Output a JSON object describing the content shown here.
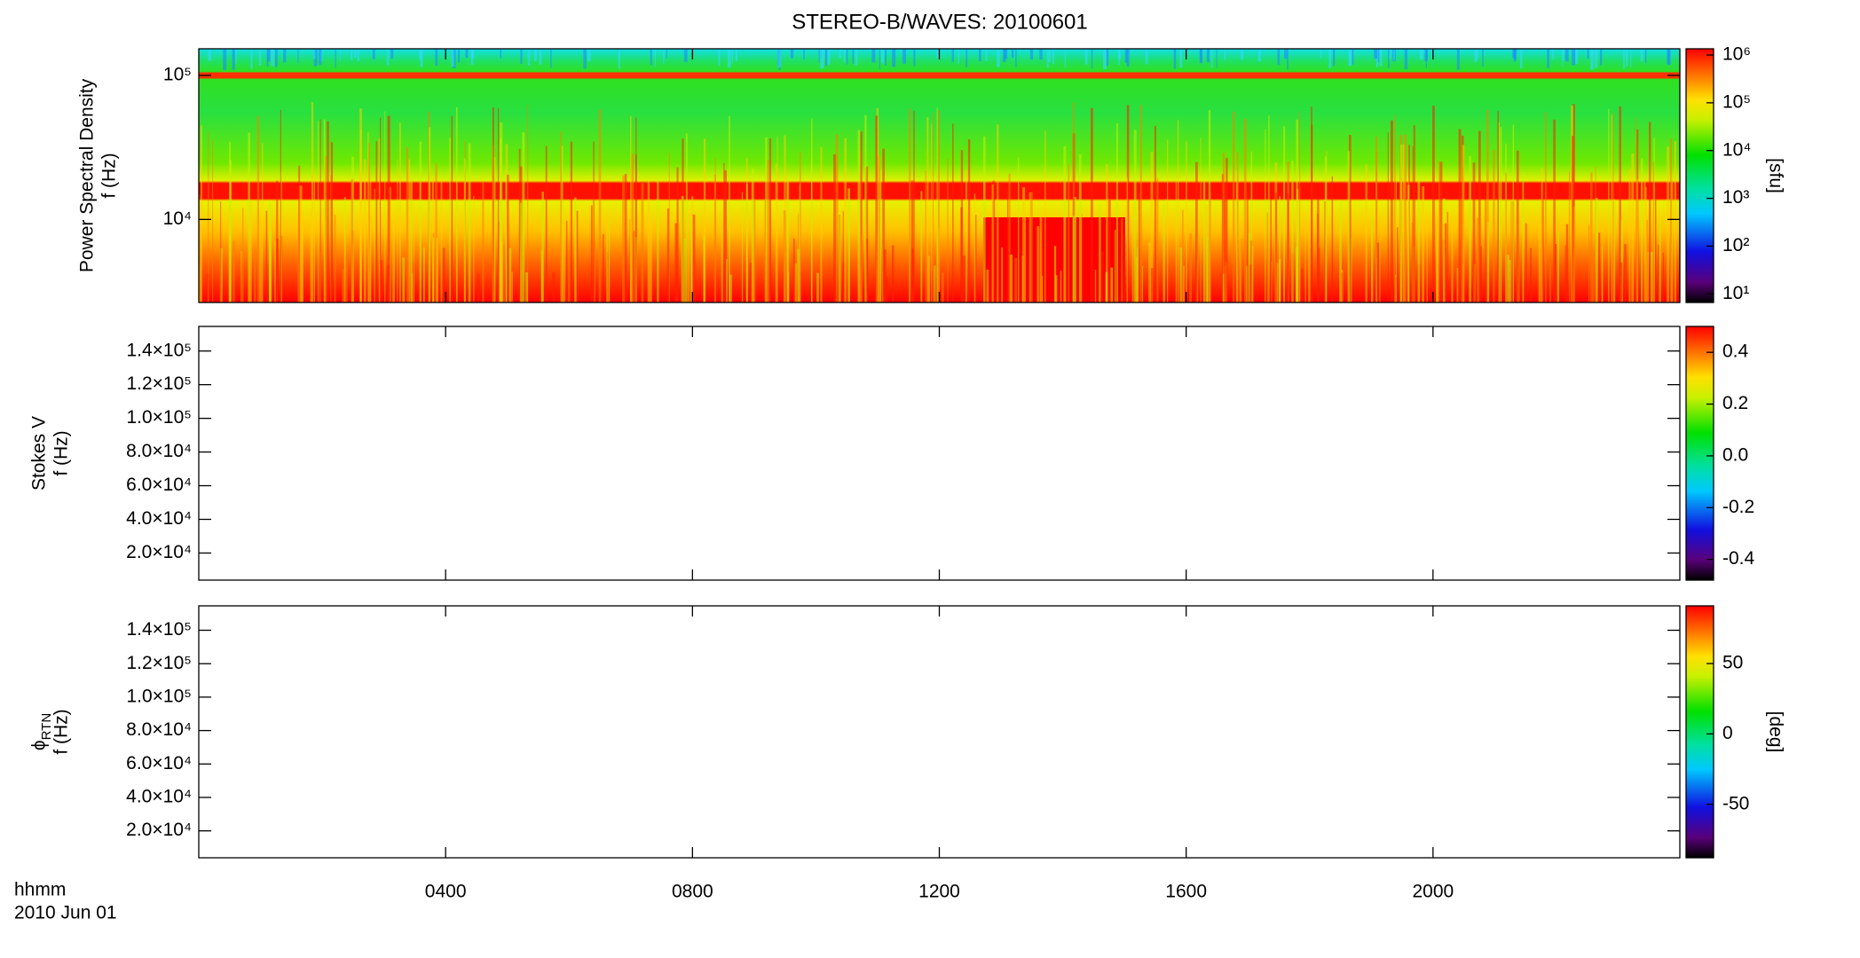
{
  "chart_data": [
    {
      "type": "spectrogram",
      "title": "STEREO-B/WAVES: 20100601",
      "ylabel": [
        "Power Spectral Density",
        "f (Hz)"
      ],
      "ylog": true,
      "ylim": [
        2650,
        153000
      ],
      "yticks": [
        {
          "value": 10000,
          "label": "10⁴"
        },
        {
          "value": 100000,
          "label": "10⁵"
        }
      ],
      "colorbar": {
        "label": "[sfu]",
        "log": true,
        "lim": [
          6.6,
          1350000
        ],
        "ticks": [
          {
            "value": 10,
            "label": "10¹"
          },
          {
            "value": 100,
            "label": "10²"
          },
          {
            "value": 1000,
            "label": "10³"
          },
          {
            "value": 10000,
            "label": "10⁴"
          },
          {
            "value": 100000,
            "label": "10⁵"
          },
          {
            "value": 1000000,
            "label": "10⁶"
          }
        ]
      }
    },
    {
      "type": "spectrogram",
      "ylabel": [
        "Stokes V",
        "f (Hz)"
      ],
      "ylog": false,
      "ylim": [
        3900,
        154600
      ],
      "yticks": [
        {
          "value": 20000,
          "label": "2.0×10⁴"
        },
        {
          "value": 40000,
          "label": "4.0×10⁴"
        },
        {
          "value": 60000,
          "label": "6.0×10⁴"
        },
        {
          "value": 80000,
          "label": "8.0×10⁴"
        },
        {
          "value": 100000,
          "label": "1.0×10⁵"
        },
        {
          "value": 120000,
          "label": "1.2×10⁵"
        },
        {
          "value": 140000,
          "label": "1.4×10⁵"
        }
      ],
      "colorbar": {
        "log": false,
        "lim": [
          -0.48,
          0.5
        ],
        "ticks": [
          -0.4,
          -0.2,
          {
            "value": 0,
            "label": "0.0"
          },
          0.2,
          0.4
        ]
      }
    },
    {
      "type": "spectrogram",
      "ylabel": [
        "ϕ",
        "f (Hz)"
      ],
      "ylabel_subscript": "RTN",
      "ylog": false,
      "ylim": [
        3900,
        154600
      ],
      "yticks": [
        {
          "value": 20000,
          "label": "2.0×10⁴"
        },
        {
          "value": 40000,
          "label": "4.0×10⁴"
        },
        {
          "value": 60000,
          "label": "6.0×10⁴"
        },
        {
          "value": 80000,
          "label": "8.0×10⁴"
        },
        {
          "value": 100000,
          "label": "1.0×10⁵"
        },
        {
          "value": 120000,
          "label": "1.2×10⁵"
        },
        {
          "value": 140000,
          "label": "1.4×10⁵"
        }
      ],
      "colorbar": {
        "label": "[deg]",
        "log": false,
        "lim": [
          -88,
          91
        ],
        "ticks": [
          -50,
          0,
          50
        ]
      },
      "xlabel": [
        "hhmm",
        "2010 Jun 01"
      ],
      "xlim": [
        0,
        24
      ],
      "xticks": [
        {
          "value": 4,
          "label": "0400"
        },
        {
          "value": 8,
          "label": "0800"
        },
        {
          "value": 12,
          "label": "1200"
        },
        {
          "value": 16,
          "label": "1600"
        },
        {
          "value": 20,
          "label": "2000"
        }
      ]
    }
  ]
}
